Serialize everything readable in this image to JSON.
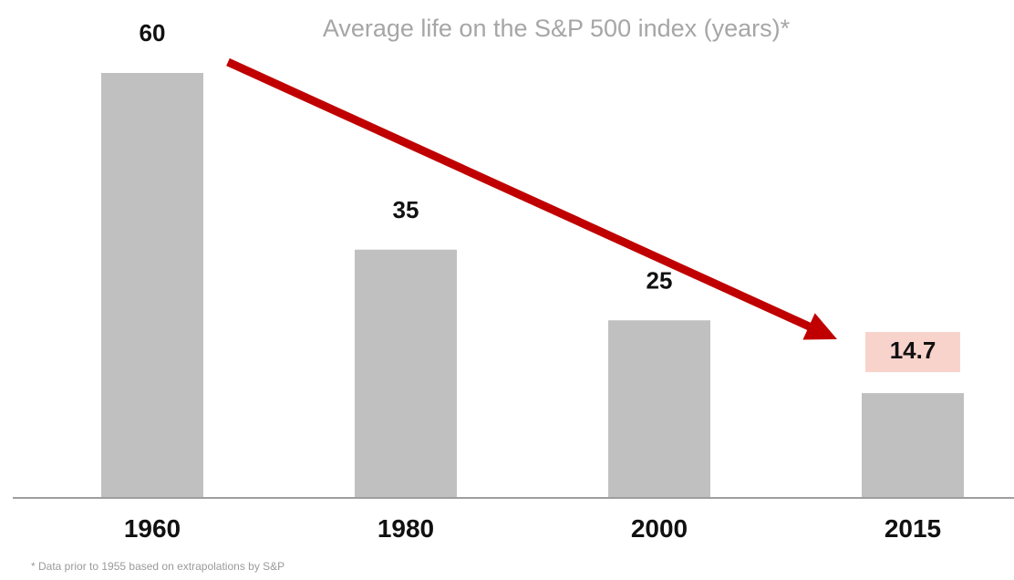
{
  "chart_data": {
    "type": "bar",
    "title": "Average life on the S&P 500 index (years)*",
    "categories": [
      "1960",
      "1980",
      "2000",
      "2015"
    ],
    "values": [
      60,
      35,
      25,
      14.7
    ],
    "data_labels": [
      "60",
      "35",
      "25",
      "14.7"
    ],
    "highlight_index": 3,
    "ylim": [
      0,
      60
    ],
    "grid": false,
    "legend": "none",
    "trend_arrow": true,
    "footnote": "* Data prior to 1955 based on extrapolations by S&P",
    "colors": {
      "bar": "#c0c0c0",
      "arrow": "#c00000",
      "highlight_bg": "#f8d3cc",
      "axis": "#7f7f7f",
      "title": "#a6a6a6"
    }
  }
}
